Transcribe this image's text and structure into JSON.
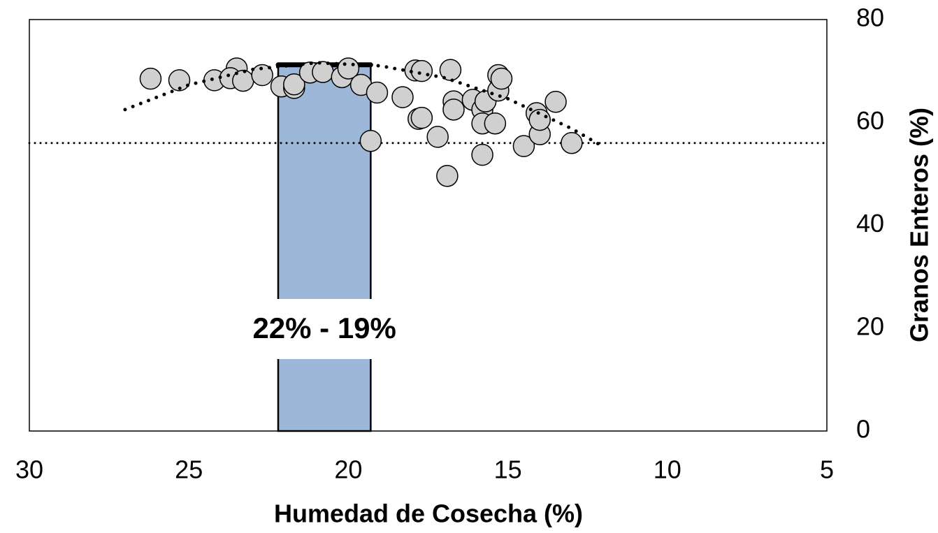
{
  "chart_data": {
    "type": "scatter",
    "xlabel": "Humedad de Cosecha (%)",
    "ylabel": "Granos Enteros (%)",
    "xlim": [
      30,
      5
    ],
    "xticks": [
      30,
      25,
      20,
      15,
      10,
      5
    ],
    "ylim": [
      0,
      80
    ],
    "yticks": [
      0,
      20,
      40,
      60,
      80
    ],
    "color": "#d0d0d0",
    "x": [
      26.2,
      25.3,
      24.2,
      23.5,
      23.7,
      23.3,
      22.7,
      22.1,
      21.7,
      21.7,
      21.2,
      20.8,
      20.2,
      20.0,
      19.6,
      19.1,
      19.3,
      18.3,
      17.9,
      17.7,
      17.8,
      17.7,
      17.2,
      16.8,
      16.7,
      16.7,
      16.9,
      16.1,
      15.8,
      15.7,
      15.8,
      15.8,
      15.4,
      15.3,
      15.3,
      15.2,
      14.5,
      14.1,
      14.0,
      14.0,
      13.5,
      13.0
    ],
    "y": [
      68.5,
      68.2,
      68.2,
      70.5,
      68.6,
      68.1,
      69.2,
      67.0,
      66.7,
      67.4,
      69.7,
      69.8,
      68.8,
      70.5,
      67.3,
      65.8,
      56.4,
      64.9,
      70.1,
      70.0,
      60.7,
      60.9,
      57.2,
      70.2,
      64.1,
      62.5,
      49.6,
      64.4,
      62.5,
      64.1,
      59.8,
      53.7,
      59.8,
      69.2,
      66.2,
      68.5,
      55.4,
      61.8,
      57.7,
      60.5,
      64.0,
      56.0
    ],
    "trend": {
      "x": [
        27,
        25,
        23,
        21,
        19,
        17,
        15,
        13,
        12.1
      ],
      "y": [
        62.5,
        67.3,
        70.3,
        71.6,
        71.0,
        68.7,
        64.6,
        58.8,
        55.6
      ]
    },
    "reference_line": 56,
    "band": {
      "x": [
        22.2,
        19.3
      ],
      "top": 71.2,
      "color": "#9db7d9",
      "label": "22% - 19%"
    }
  }
}
